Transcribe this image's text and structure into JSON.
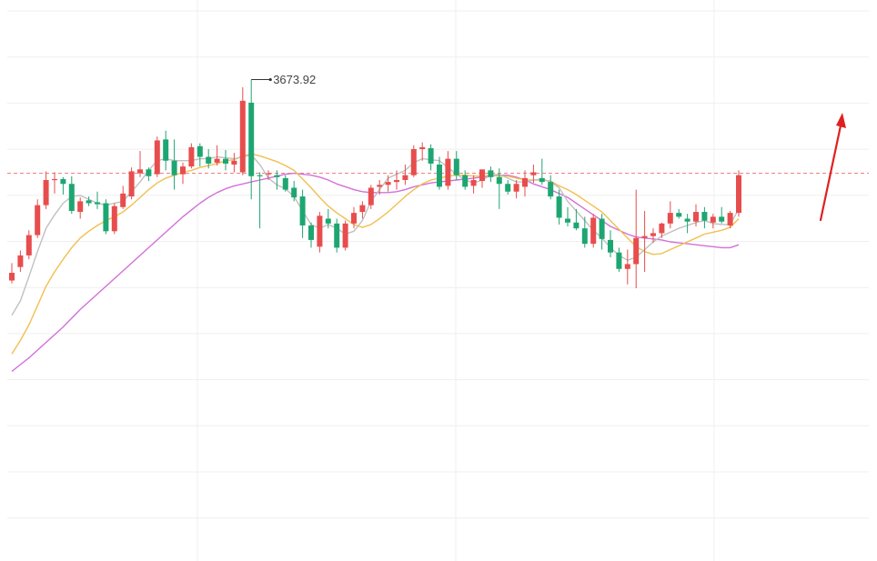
{
  "chart_data": {
    "type": "candlestick",
    "title": "",
    "xlabel": "",
    "ylabel": "",
    "ylim": [
      3220,
      3745
    ],
    "grid": true,
    "reference_line": {
      "value": 3577
    },
    "annotations": [
      {
        "text": "3673.92",
        "value": 3673.92,
        "candle_index": 28
      }
    ],
    "trend_arrow": {
      "direction": "up"
    },
    "colors": {
      "up": "#e84d4d",
      "down": "#1ea672",
      "ma_short": "#c0c0c0",
      "ma_mid": "#f0c050",
      "ma_long": "#d370d8",
      "reference": "#f08080",
      "grid": "#efefef",
      "arrow": "#e02020"
    },
    "candles": [
      [
        3466,
        3484,
        3463,
        3474
      ],
      [
        3480,
        3497,
        3475,
        3492
      ],
      [
        3492,
        3518,
        3488,
        3513
      ],
      [
        3513,
        3550,
        3510,
        3544
      ],
      [
        3544,
        3579,
        3540,
        3570
      ],
      [
        3570,
        3578,
        3556,
        3571
      ],
      [
        3571,
        3573,
        3555,
        3566
      ],
      [
        3566,
        3574,
        3535,
        3538
      ],
      [
        3537,
        3552,
        3530,
        3548
      ],
      [
        3549,
        3553,
        3543,
        3546
      ],
      [
        3547,
        3558,
        3540,
        3545
      ],
      [
        3546,
        3550,
        3514,
        3517
      ],
      [
        3517,
        3546,
        3514,
        3543
      ],
      [
        3542,
        3564,
        3540,
        3556
      ],
      [
        3553,
        3583,
        3550,
        3579
      ],
      [
        3577,
        3600,
        3573,
        3581
      ],
      [
        3581,
        3583,
        3569,
        3574
      ],
      [
        3576,
        3615,
        3573,
        3611
      ],
      [
        3612,
        3621,
        3580,
        3590
      ],
      [
        3590,
        3612,
        3560,
        3575
      ],
      [
        3576,
        3588,
        3566,
        3584
      ],
      [
        3584,
        3608,
        3582,
        3604
      ],
      [
        3605,
        3608,
        3584,
        3594
      ],
      [
        3594,
        3602,
        3582,
        3587
      ],
      [
        3588,
        3606,
        3585,
        3592
      ],
      [
        3592,
        3601,
        3580,
        3587
      ],
      [
        3586,
        3598,
        3578,
        3590
      ],
      [
        3578,
        3666,
        3575,
        3652
      ],
      [
        3650,
        3674,
        3550,
        3574
      ],
      [
        3575,
        3578,
        3520,
        3574
      ],
      [
        3576,
        3580,
        3570,
        3577
      ],
      [
        3575,
        3580,
        3560,
        3573
      ],
      [
        3572,
        3575,
        3558,
        3560
      ],
      [
        3562,
        3569,
        3548,
        3552
      ],
      [
        3553,
        3560,
        3510,
        3523
      ],
      [
        3523,
        3526,
        3500,
        3508
      ],
      [
        3501,
        3537,
        3495,
        3533
      ],
      [
        3530,
        3540,
        3520,
        3525
      ],
      [
        3525,
        3530,
        3495,
        3500
      ],
      [
        3500,
        3528,
        3497,
        3525
      ],
      [
        3525,
        3542,
        3520,
        3536
      ],
      [
        3537,
        3548,
        3530,
        3544
      ],
      [
        3544,
        3565,
        3540,
        3562
      ],
      [
        3563,
        3570,
        3555,
        3565
      ],
      [
        3565,
        3575,
        3558,
        3568
      ],
      [
        3568,
        3580,
        3560,
        3570
      ],
      [
        3570,
        3586,
        3565,
        3575
      ],
      [
        3575,
        3606,
        3573,
        3602
      ],
      [
        3602,
        3609,
        3590,
        3604
      ],
      [
        3603,
        3607,
        3580,
        3587
      ],
      [
        3586,
        3594,
        3560,
        3563
      ],
      [
        3564,
        3600,
        3560,
        3592
      ],
      [
        3592,
        3600,
        3570,
        3575
      ],
      [
        3575,
        3580,
        3560,
        3563
      ],
      [
        3564,
        3575,
        3556,
        3570
      ],
      [
        3569,
        3580,
        3562,
        3581
      ],
      [
        3580,
        3584,
        3568,
        3573
      ],
      [
        3573,
        3582,
        3540,
        3566
      ],
      [
        3566,
        3570,
        3555,
        3558
      ],
      [
        3558,
        3570,
        3551,
        3566
      ],
      [
        3563,
        3580,
        3553,
        3572
      ],
      [
        3575,
        3586,
        3567,
        3578
      ],
      [
        3572,
        3592,
        3565,
        3568
      ],
      [
        3568,
        3575,
        3550,
        3553
      ],
      [
        3553,
        3560,
        3524,
        3531
      ],
      [
        3530,
        3542,
        3522,
        3526
      ],
      [
        3526,
        3540,
        3518,
        3520
      ],
      [
        3520,
        3532,
        3500,
        3504
      ],
      [
        3504,
        3535,
        3500,
        3531
      ],
      [
        3530,
        3535,
        3498,
        3509
      ],
      [
        3508,
        3518,
        3490,
        3495
      ],
      [
        3495,
        3500,
        3475,
        3478
      ],
      [
        3478,
        3498,
        3462,
        3483
      ],
      [
        3483,
        3560,
        3458,
        3510
      ],
      [
        3510,
        3538,
        3475,
        3512
      ],
      [
        3512,
        3520,
        3505,
        3515
      ],
      [
        3515,
        3526,
        3510,
        3525
      ],
      [
        3525,
        3548,
        3520,
        3536
      ],
      [
        3536,
        3540,
        3530,
        3532
      ],
      [
        3530,
        3535,
        3515,
        3527
      ],
      [
        3527,
        3545,
        3522,
        3537
      ],
      [
        3537,
        3542,
        3520,
        3528
      ],
      [
        3526,
        3535,
        3520,
        3532
      ],
      [
        3532,
        3542,
        3525,
        3527
      ],
      [
        3523,
        3538,
        3520,
        3536
      ],
      [
        3536,
        3580,
        3532,
        3575
      ]
    ],
    "ma_short": [
      3430,
      3445,
      3470,
      3496,
      3520,
      3534,
      3546,
      3553,
      3554,
      3550,
      3546,
      3544,
      3546,
      3548,
      3558,
      3568,
      3580,
      3590,
      3592,
      3590,
      3590,
      3590,
      3592,
      3592,
      3594,
      3593,
      3592,
      3594,
      3596,
      3586,
      3572,
      3565,
      3561,
      3553,
      3538,
      3524,
      3520,
      3524,
      3520,
      3514,
      3517,
      3528,
      3548,
      3560,
      3572,
      3576,
      3580,
      3588,
      3592,
      3591,
      3590,
      3583,
      3576,
      3570,
      3567,
      3570,
      3575,
      3576,
      3572,
      3568,
      3568,
      3570,
      3571,
      3568,
      3562,
      3548,
      3538,
      3528,
      3518,
      3510,
      3500,
      3492,
      3487,
      3490,
      3498,
      3506,
      3512,
      3516,
      3520,
      3523,
      3526,
      3528,
      3525,
      3524,
      3524,
      3540
    ],
    "ma_mid": [
      3390,
      3404,
      3420,
      3440,
      3460,
      3475,
      3488,
      3500,
      3510,
      3517,
      3523,
      3528,
      3532,
      3537,
      3544,
      3552,
      3560,
      3567,
      3572,
      3575,
      3578,
      3580,
      3583,
      3585,
      3587,
      3590,
      3591,
      3595,
      3597,
      3595,
      3592,
      3589,
      3585,
      3580,
      3571,
      3562,
      3552,
      3543,
      3536,
      3530,
      3524,
      3521,
      3524,
      3530,
      3537,
      3545,
      3553,
      3560,
      3566,
      3570,
      3572,
      3574,
      3575,
      3575,
      3574,
      3574,
      3575,
      3574,
      3574,
      3572,
      3570,
      3570,
      3570,
      3569,
      3564,
      3560,
      3555,
      3549,
      3543,
      3537,
      3528,
      3519,
      3510,
      3501,
      3496,
      3493,
      3494,
      3498,
      3502,
      3506,
      3510,
      3514,
      3516,
      3518,
      3521,
      3530
    ],
    "ma_long": [
      3372,
      3379,
      3386,
      3394,
      3402,
      3410,
      3418,
      3427,
      3436,
      3444,
      3452,
      3460,
      3468,
      3476,
      3484,
      3492,
      3500,
      3508,
      3516,
      3524,
      3532,
      3539,
      3546,
      3552,
      3557,
      3561,
      3564,
      3566,
      3568,
      3570,
      3572,
      3574,
      3576,
      3577,
      3576,
      3575,
      3573,
      3570,
      3566,
      3563,
      3560,
      3558,
      3557,
      3557,
      3557,
      3558,
      3560,
      3563,
      3565,
      3567,
      3568,
      3569,
      3570,
      3571,
      3572,
      3573,
      3574,
      3575,
      3575,
      3573,
      3570,
      3566,
      3563,
      3560,
      3556,
      3552,
      3546,
      3540,
      3534,
      3528,
      3522,
      3518,
      3514,
      3511,
      3510,
      3509,
      3508,
      3506,
      3505,
      3504,
      3503,
      3502,
      3501,
      3500,
      3500,
      3503
    ]
  }
}
